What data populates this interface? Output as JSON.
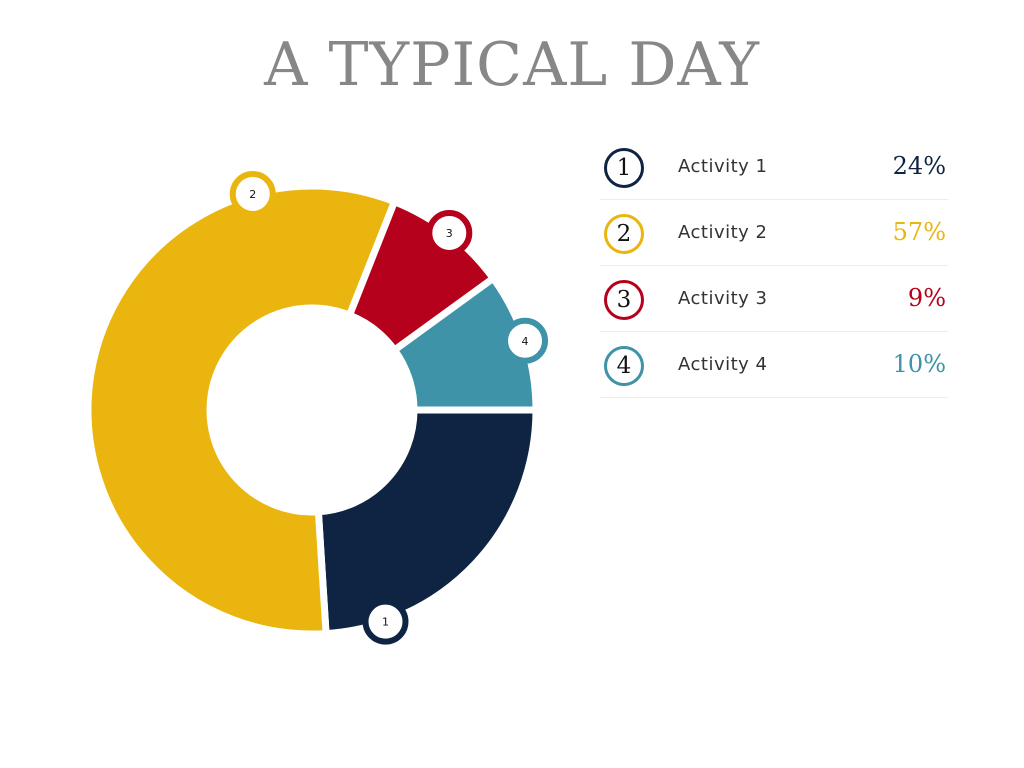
{
  "title": "A TYPICAL DAY",
  "chart_data": {
    "type": "pie",
    "title": "A TYPICAL DAY",
    "categories": [
      "Activity 1",
      "Activity 2",
      "Activity 3",
      "Activity 4"
    ],
    "numbers": [
      "1",
      "2",
      "3",
      "4"
    ],
    "values": [
      24,
      57,
      9,
      10
    ],
    "value_labels": [
      "24%",
      "57%",
      "9%",
      "10%"
    ],
    "colors": [
      "#0e2442",
      "#e9b50e",
      "#b5011c",
      "#3e93a8"
    ],
    "legend_position": "right"
  }
}
